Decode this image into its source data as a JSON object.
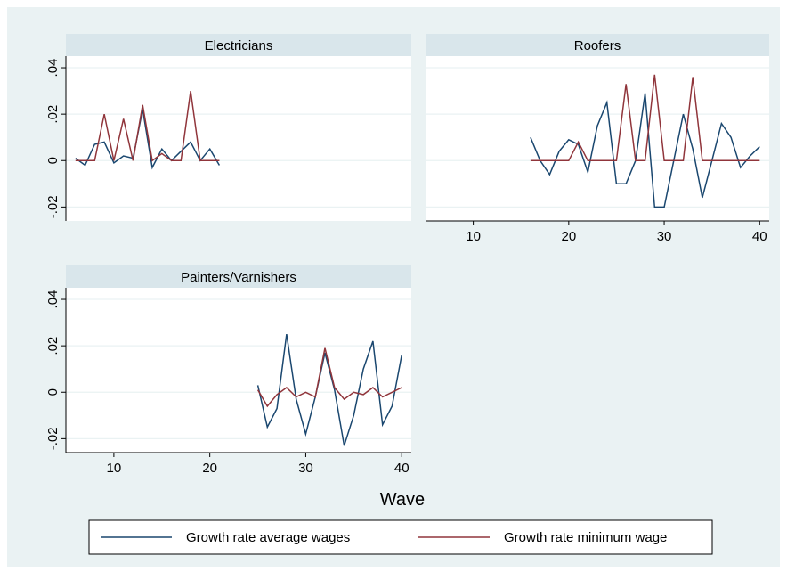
{
  "colors": {
    "outer_bg": "#eaf2f3",
    "plot_bg": "#ffffff",
    "strip_bg": "#d9e6eb",
    "grid": "#eaf2f3",
    "axis": "#000000",
    "series_avg": "#1a476f",
    "series_min": "#90353b"
  },
  "chart_data": {
    "type": "line",
    "xlabel": "Wave",
    "ylabel": "",
    "xlim": [
      5,
      41
    ],
    "ylim": [
      -0.026,
      0.045
    ],
    "x_ticks": [
      10,
      20,
      30,
      40
    ],
    "y_ticks": [
      -0.02,
      0,
      0.02,
      0.04
    ],
    "y_tick_labels": [
      "-.02",
      "0",
      ".02",
      ".04"
    ],
    "grid": true,
    "legend_position": "bottom",
    "legend": [
      "Growth rate average wages",
      "Growth rate minimum wage"
    ],
    "panels": [
      {
        "title": "Electricians",
        "show_x_axis": false,
        "series": [
          {
            "name": "Growth rate average wages",
            "x": [
              6,
              7,
              8,
              9,
              10,
              11,
              12,
              13,
              14,
              15,
              16,
              17,
              18,
              19,
              20,
              21
            ],
            "y": [
              0.001,
              -0.002,
              0.007,
              0.008,
              -0.001,
              0.002,
              0.001,
              0.022,
              -0.003,
              0.005,
              0.0,
              0.004,
              0.008,
              0.0,
              0.005,
              -0.002
            ]
          },
          {
            "name": "Growth rate minimum wage",
            "x": [
              6,
              7,
              8,
              9,
              10,
              11,
              12,
              13,
              14,
              15,
              16,
              17,
              18,
              19,
              20,
              21
            ],
            "y": [
              0.0,
              0.0,
              0.0,
              0.02,
              0.0,
              0.018,
              0.0,
              0.024,
              0.0,
              0.003,
              0.0,
              0.0,
              0.03,
              0.0,
              0.0,
              0.0
            ]
          }
        ]
      },
      {
        "title": "Roofers",
        "show_x_axis": true,
        "series": [
          {
            "name": "Growth rate average wages",
            "x": [
              16,
              17,
              18,
              19,
              20,
              21,
              22,
              23,
              24,
              25,
              26,
              27,
              28,
              29,
              30,
              31,
              32,
              33,
              34,
              35,
              36,
              37,
              38,
              39,
              40
            ],
            "y": [
              0.01,
              0.0,
              -0.006,
              0.004,
              0.009,
              0.007,
              -0.005,
              0.015,
              0.025,
              -0.01,
              -0.01,
              0.0,
              0.029,
              -0.02,
              -0.02,
              0.0,
              0.02,
              0.005,
              -0.016,
              0.0,
              0.016,
              0.01,
              -0.003,
              0.002,
              0.006
            ]
          },
          {
            "name": "Growth rate minimum wage",
            "x": [
              16,
              17,
              18,
              19,
              20,
              21,
              22,
              23,
              24,
              25,
              26,
              27,
              28,
              29,
              30,
              31,
              32,
              33,
              34,
              35,
              36,
              37,
              38,
              39,
              40
            ],
            "y": [
              0.0,
              0.0,
              0.0,
              0.0,
              0.0,
              0.008,
              0.0,
              0.0,
              0.0,
              0.0,
              0.033,
              0.0,
              0.0,
              0.037,
              0.0,
              0.0,
              0.0,
              0.036,
              0.0,
              0.0,
              0.0,
              0.0,
              0.0,
              0.0,
              0.0
            ]
          }
        ]
      },
      {
        "title": "Painters/Varnishers",
        "show_x_axis": true,
        "series": [
          {
            "name": "Growth rate average wages",
            "x": [
              25,
              26,
              27,
              28,
              29,
              30,
              31,
              32,
              33,
              34,
              35,
              36,
              37,
              38,
              39,
              40
            ],
            "y": [
              0.003,
              -0.015,
              -0.007,
              0.025,
              -0.003,
              -0.018,
              -0.002,
              0.017,
              0.001,
              -0.023,
              -0.01,
              0.01,
              0.022,
              -0.014,
              -0.006,
              0.016
            ]
          },
          {
            "name": "Growth rate minimum wage",
            "x": [
              25,
              26,
              27,
              28,
              29,
              30,
              31,
              32,
              33,
              34,
              35,
              36,
              37,
              38,
              39,
              40
            ],
            "y": [
              0.001,
              -0.006,
              -0.001,
              0.002,
              -0.002,
              0.0,
              -0.002,
              0.019,
              0.002,
              -0.003,
              0.0,
              -0.001,
              0.002,
              -0.002,
              0.0,
              0.002
            ]
          }
        ]
      }
    ]
  }
}
